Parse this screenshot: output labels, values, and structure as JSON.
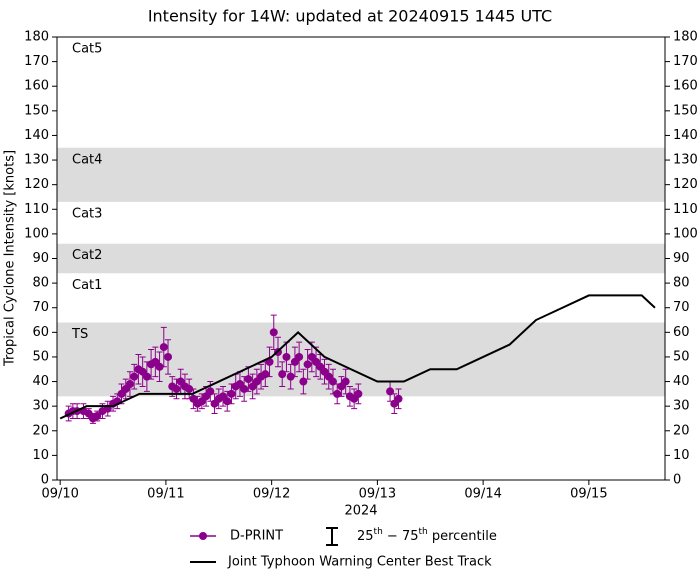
{
  "chart_data": {
    "type": "scatter",
    "title": "Intensity for 14W: updated at 20240915 1445 UTC",
    "ylabel": "Tropical Cyclone Intensity [knots]",
    "xlabel": "2024",
    "xlim": [
      -0.03,
      5.72
    ],
    "xticks": [
      {
        "value": 0,
        "label": "09/10"
      },
      {
        "value": 1,
        "label": "09/11"
      },
      {
        "value": 2,
        "label": "09/12"
      },
      {
        "value": 3,
        "label": "09/13"
      },
      {
        "value": 4,
        "label": "09/14"
      },
      {
        "value": 5,
        "label": "09/15"
      }
    ],
    "ylim": [
      0,
      180
    ],
    "yticks": [
      0,
      10,
      20,
      30,
      40,
      50,
      60,
      70,
      80,
      90,
      100,
      110,
      120,
      130,
      140,
      150,
      160,
      170,
      180
    ],
    "bands": [
      {
        "name": "TS",
        "range": [
          34,
          64
        ],
        "shaded": true
      },
      {
        "name": "Cat1",
        "range": [
          64,
          84
        ],
        "shaded": false
      },
      {
        "name": "Cat2",
        "range": [
          84,
          96
        ],
        "shaded": true
      },
      {
        "name": "Cat3",
        "range": [
          96,
          113
        ],
        "shaded": false
      },
      {
        "name": "Cat4",
        "range": [
          113,
          135
        ],
        "shaded": true
      },
      {
        "name": "Cat5",
        "range": [
          135,
          180
        ],
        "shaded": false
      }
    ],
    "band_color": "#dcdcdc",
    "error_legend": {
      "pre": "25",
      "sup1": "th",
      "mid": " − 75",
      "sup2": "th",
      "post": " percentile"
    },
    "series": [
      {
        "name": "D-PRINT",
        "color": "#8b008b",
        "x": [
          0.08,
          0.12,
          0.16,
          0.22,
          0.27,
          0.31,
          0.35,
          0.4,
          0.45,
          0.5,
          0.54,
          0.58,
          0.62,
          0.66,
          0.7,
          0.74,
          0.78,
          0.82,
          0.86,
          0.9,
          0.94,
          0.98,
          1.02,
          1.06,
          1.1,
          1.14,
          1.18,
          1.22,
          1.26,
          1.3,
          1.34,
          1.38,
          1.42,
          1.46,
          1.5,
          1.54,
          1.58,
          1.62,
          1.66,
          1.7,
          1.74,
          1.78,
          1.82,
          1.86,
          1.9,
          1.94,
          1.98,
          2.02,
          2.06,
          2.1,
          2.14,
          2.18,
          2.22,
          2.26,
          2.3,
          2.34,
          2.38,
          2.42,
          2.46,
          2.5,
          2.54,
          2.58,
          2.62,
          2.66,
          2.7,
          2.74,
          2.78,
          2.82,
          3.12,
          3.16,
          3.2
        ],
        "values": [
          27,
          28,
          28,
          28,
          27,
          25,
          26,
          28,
          29,
          31,
          32,
          35,
          37,
          39,
          42,
          45,
          44,
          42,
          47,
          48,
          46,
          54,
          50,
          38,
          37,
          40,
          38,
          37,
          33,
          31,
          32,
          34,
          36,
          31,
          33,
          34,
          32,
          35,
          38,
          39,
          37,
          41,
          38,
          40,
          42,
          43,
          48,
          60,
          52,
          43,
          50,
          42,
          48,
          50,
          40,
          47,
          50,
          48,
          46,
          44,
          42,
          40,
          35,
          38,
          40,
          34,
          33,
          35,
          36,
          31,
          33
        ],
        "errors": [
          3,
          3,
          3,
          3,
          2,
          2,
          2,
          3,
          3,
          3,
          3,
          4,
          4,
          5,
          5,
          6,
          6,
          6,
          6,
          6,
          6,
          8,
          7,
          4,
          4,
          5,
          5,
          4,
          4,
          3,
          3,
          4,
          4,
          4,
          4,
          4,
          4,
          4,
          5,
          5,
          5,
          5,
          5,
          5,
          5,
          5,
          6,
          7,
          6,
          5,
          6,
          5,
          6,
          6,
          5,
          6,
          6,
          6,
          5,
          5,
          5,
          5,
          4,
          4,
          5,
          4,
          4,
          4,
          4,
          4,
          4
        ]
      },
      {
        "name": "Joint Typhoon Warning Center Best Track",
        "color": "#000000",
        "x": [
          0,
          0.25,
          0.5,
          0.75,
          1.0,
          1.25,
          1.5,
          1.75,
          2.0,
          2.25,
          2.5,
          2.75,
          3.0,
          3.25,
          3.5,
          3.75,
          4.0,
          4.25,
          4.5,
          4.75,
          5.0,
          5.25,
          5.5,
          5.625
        ],
        "values": [
          25,
          30,
          30,
          35,
          35,
          35,
          40,
          45,
          50,
          60,
          50,
          45,
          40,
          40,
          45,
          45,
          50,
          55,
          65,
          70,
          75,
          75,
          75,
          70
        ]
      }
    ]
  }
}
